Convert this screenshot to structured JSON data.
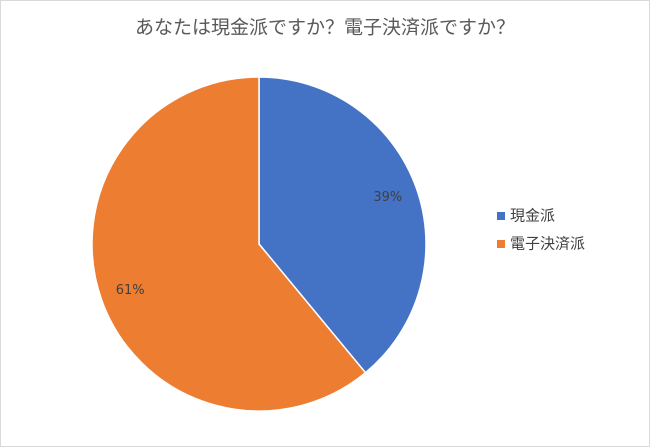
{
  "chart_data": {
    "type": "pie",
    "title": "あなたは現金派ですか？電子決済派ですか？",
    "categories": [
      "現金派",
      "電子決済派"
    ],
    "values": [
      39,
      61
    ],
    "value_labels": [
      "39%",
      "61%"
    ],
    "colors": [
      "#4472c4",
      "#ed7d31"
    ],
    "legend": "right"
  }
}
